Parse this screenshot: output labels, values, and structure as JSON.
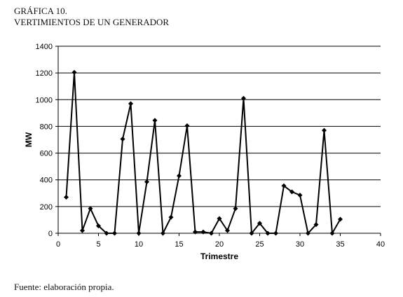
{
  "figure": {
    "label": "GRÁFICA 10.",
    "title": "VERTIMIENTOS DE UN GENERADOR",
    "source": "Fuente: elaboración propia."
  },
  "chart_data": {
    "type": "line",
    "title": "VERTIMIENTOS DE UN GENERADOR",
    "xlabel": "Trimestre",
    "ylabel": "MW",
    "xlim": [
      0,
      40
    ],
    "ylim": [
      0,
      1400
    ],
    "xticks": [
      0,
      5,
      10,
      15,
      20,
      25,
      30,
      35,
      40
    ],
    "yticks": [
      0,
      200,
      400,
      600,
      800,
      1000,
      1200,
      1400
    ],
    "grid": "horizontal",
    "legend": "none",
    "series": [
      {
        "marker": "diamond",
        "color": "#000000",
        "x": [
          1,
          2,
          3,
          4,
          5,
          6,
          7,
          8,
          9,
          10,
          11,
          12,
          13,
          14,
          15,
          16,
          17,
          18,
          19,
          20,
          21,
          22,
          23,
          24,
          25,
          26,
          27,
          28,
          29,
          30,
          31,
          32,
          33,
          34,
          35
        ],
        "y": [
          270,
          1205,
          20,
          185,
          55,
          0,
          0,
          705,
          970,
          0,
          385,
          845,
          0,
          120,
          430,
          805,
          10,
          10,
          0,
          110,
          20,
          185,
          1010,
          0,
          75,
          0,
          0,
          355,
          310,
          285,
          0,
          65,
          770,
          0,
          105
        ]
      }
    ]
  }
}
